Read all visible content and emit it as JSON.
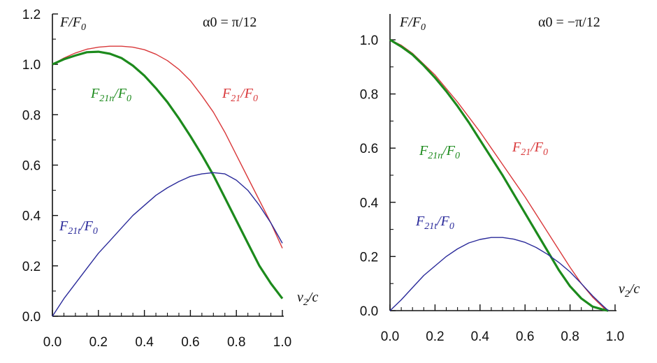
{
  "chart_data": [
    {
      "type": "line",
      "y_axis_label": "F/F0",
      "x_axis_label": "v2/c",
      "annotation": "α0 = π/12",
      "xlim": [
        0,
        1.0
      ],
      "ylim": [
        0,
        1.2
      ],
      "x_ticks": [
        "0.0",
        "0.2",
        "0.4",
        "0.6",
        "0.8",
        "1.0"
      ],
      "y_ticks": [
        "0.0",
        "0.2",
        "0.4",
        "0.6",
        "0.8",
        "1.0",
        "1.2"
      ],
      "series": [
        {
          "name": "F21/F0",
          "color": "#d9383a",
          "x": [
            0.0,
            0.05,
            0.1,
            0.15,
            0.2,
            0.25,
            0.3,
            0.35,
            0.4,
            0.45,
            0.5,
            0.55,
            0.6,
            0.65,
            0.7,
            0.75,
            0.8,
            0.85,
            0.9,
            0.95,
            1.0
          ],
          "y": [
            1.0,
            1.025,
            1.045,
            1.06,
            1.068,
            1.072,
            1.072,
            1.068,
            1.058,
            1.04,
            1.015,
            0.98,
            0.935,
            0.875,
            0.81,
            0.73,
            0.64,
            0.55,
            0.46,
            0.37,
            0.27
          ]
        },
        {
          "name": "F21n/F0",
          "color": "#1c8a1c",
          "x": [
            0.0,
            0.05,
            0.1,
            0.15,
            0.2,
            0.25,
            0.3,
            0.35,
            0.4,
            0.45,
            0.5,
            0.55,
            0.6,
            0.65,
            0.7,
            0.75,
            0.8,
            0.85,
            0.9,
            0.95,
            1.0
          ],
          "y": [
            1.0,
            1.02,
            1.035,
            1.048,
            1.05,
            1.042,
            1.025,
            0.995,
            0.955,
            0.905,
            0.85,
            0.785,
            0.715,
            0.64,
            0.56,
            0.47,
            0.38,
            0.29,
            0.2,
            0.13,
            0.07
          ]
        },
        {
          "name": "F21t/F0",
          "color": "#2a2a9a",
          "x": [
            0.0,
            0.05,
            0.1,
            0.15,
            0.2,
            0.25,
            0.3,
            0.35,
            0.4,
            0.45,
            0.5,
            0.55,
            0.6,
            0.65,
            0.7,
            0.75,
            0.8,
            0.85,
            0.9,
            0.95,
            1.0
          ],
          "y": [
            0.0,
            0.07,
            0.13,
            0.19,
            0.25,
            0.3,
            0.35,
            0.4,
            0.44,
            0.48,
            0.51,
            0.535,
            0.555,
            0.565,
            0.57,
            0.565,
            0.54,
            0.5,
            0.44,
            0.37,
            0.29
          ]
        }
      ]
    },
    {
      "type": "line",
      "y_axis_label": "F/F0",
      "x_axis_label": "v2/c",
      "annotation": "α0 = −π/12",
      "xlim": [
        0,
        1.0
      ],
      "ylim": [
        0,
        1.0
      ],
      "x_ticks": [
        "0.0",
        "0.2",
        "0.4",
        "0.6",
        "0.8",
        "1.0"
      ],
      "y_ticks": [
        "0.0",
        "0.2",
        "0.4",
        "0.6",
        "0.8",
        "1.0"
      ],
      "series": [
        {
          "name": "F21/F0",
          "color": "#d9383a",
          "x": [
            0.0,
            0.05,
            0.1,
            0.15,
            0.2,
            0.25,
            0.3,
            0.35,
            0.4,
            0.45,
            0.5,
            0.55,
            0.6,
            0.65,
            0.7,
            0.75,
            0.8,
            0.85,
            0.9,
            0.95,
            0.97
          ],
          "y": [
            1.0,
            0.98,
            0.95,
            0.91,
            0.87,
            0.82,
            0.77,
            0.715,
            0.66,
            0.6,
            0.54,
            0.48,
            0.42,
            0.355,
            0.29,
            0.225,
            0.16,
            0.1,
            0.05,
            0.01,
            0.0
          ]
        },
        {
          "name": "F21n/F0",
          "color": "#1c8a1c",
          "x": [
            0.0,
            0.05,
            0.1,
            0.15,
            0.2,
            0.25,
            0.3,
            0.35,
            0.4,
            0.45,
            0.5,
            0.55,
            0.6,
            0.65,
            0.7,
            0.75,
            0.8,
            0.85,
            0.9,
            0.95,
            0.97
          ],
          "y": [
            1.0,
            0.975,
            0.945,
            0.905,
            0.86,
            0.81,
            0.755,
            0.695,
            0.63,
            0.565,
            0.5,
            0.43,
            0.36,
            0.29,
            0.22,
            0.15,
            0.09,
            0.045,
            0.015,
            0.003,
            0.0
          ]
        },
        {
          "name": "F21t/F0",
          "color": "#2a2a9a",
          "x": [
            0.0,
            0.05,
            0.1,
            0.15,
            0.2,
            0.25,
            0.3,
            0.35,
            0.4,
            0.45,
            0.5,
            0.55,
            0.6,
            0.65,
            0.7,
            0.75,
            0.8,
            0.85,
            0.9,
            0.95,
            0.97
          ],
          "y": [
            0.0,
            0.04,
            0.085,
            0.13,
            0.165,
            0.2,
            0.228,
            0.25,
            0.263,
            0.27,
            0.27,
            0.264,
            0.252,
            0.233,
            0.208,
            0.178,
            0.143,
            0.1,
            0.055,
            0.015,
            0.0
          ]
        }
      ]
    }
  ]
}
